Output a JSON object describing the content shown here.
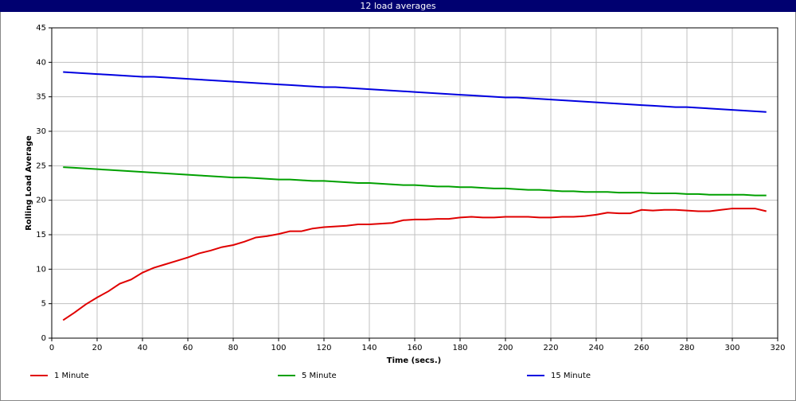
{
  "chart_data": {
    "type": "line",
    "title": "12 load averages",
    "x_label": "Time (secs.)",
    "y_label": "Rolling Load Average",
    "x": [
      5,
      10,
      15,
      20,
      25,
      30,
      35,
      40,
      45,
      50,
      55,
      60,
      65,
      70,
      75,
      80,
      85,
      90,
      95,
      100,
      105,
      110,
      115,
      120,
      125,
      130,
      135,
      140,
      145,
      150,
      155,
      160,
      165,
      170,
      175,
      180,
      185,
      190,
      195,
      200,
      205,
      210,
      215,
      220,
      225,
      230,
      235,
      240,
      245,
      250,
      255,
      260,
      265,
      270,
      275,
      280,
      285,
      290,
      295,
      300,
      305,
      310,
      315
    ],
    "series": [
      {
        "name": "1 Minute",
        "color": "#e00000",
        "values": [
          2.6,
          3.7,
          4.9,
          5.9,
          6.8,
          7.9,
          8.5,
          9.5,
          10.2,
          10.7,
          11.2,
          11.7,
          12.3,
          12.7,
          13.2,
          13.5,
          14.0,
          14.6,
          14.8,
          15.1,
          15.5,
          15.5,
          15.9,
          16.1,
          16.2,
          16.3,
          16.5,
          16.5,
          16.6,
          16.7,
          17.1,
          17.2,
          17.2,
          17.3,
          17.3,
          17.5,
          17.6,
          17.5,
          17.5,
          17.6,
          17.6,
          17.6,
          17.5,
          17.5,
          17.6,
          17.6,
          17.7,
          17.9,
          18.2,
          18.1,
          18.1,
          18.6,
          18.5,
          18.6,
          18.6,
          18.5,
          18.4,
          18.4,
          18.6,
          18.8,
          18.8,
          18.8,
          18.4
        ]
      },
      {
        "name": "5 Minute",
        "color": "#00a000",
        "values": [
          24.8,
          24.7,
          24.6,
          24.5,
          24.4,
          24.3,
          24.2,
          24.1,
          24.0,
          23.9,
          23.8,
          23.7,
          23.6,
          23.5,
          23.4,
          23.3,
          23.3,
          23.2,
          23.1,
          23.0,
          23.0,
          22.9,
          22.8,
          22.8,
          22.7,
          22.6,
          22.5,
          22.5,
          22.4,
          22.3,
          22.2,
          22.2,
          22.1,
          22.0,
          22.0,
          21.9,
          21.9,
          21.8,
          21.7,
          21.7,
          21.6,
          21.5,
          21.5,
          21.4,
          21.3,
          21.3,
          21.2,
          21.2,
          21.2,
          21.1,
          21.1,
          21.1,
          21.0,
          21.0,
          21.0,
          20.9,
          20.9,
          20.8,
          20.8,
          20.8,
          20.8,
          20.7,
          20.7
        ]
      },
      {
        "name": "15 Minute",
        "color": "#0000e0",
        "values": [
          38.6,
          38.5,
          38.4,
          38.3,
          38.2,
          38.1,
          38.0,
          37.9,
          37.9,
          37.8,
          37.7,
          37.6,
          37.5,
          37.4,
          37.3,
          37.2,
          37.1,
          37.0,
          36.9,
          36.8,
          36.7,
          36.6,
          36.5,
          36.4,
          36.4,
          36.3,
          36.2,
          36.1,
          36.0,
          35.9,
          35.8,
          35.7,
          35.6,
          35.5,
          35.4,
          35.3,
          35.2,
          35.1,
          35.0,
          34.9,
          34.9,
          34.8,
          34.7,
          34.6,
          34.5,
          34.4,
          34.3,
          34.2,
          34.1,
          34.0,
          33.9,
          33.8,
          33.7,
          33.6,
          33.5,
          33.5,
          33.4,
          33.3,
          33.2,
          33.1,
          33.0,
          32.9,
          32.8
        ]
      }
    ],
    "xlim": [
      0,
      320
    ],
    "xticks": [
      0,
      20,
      40,
      60,
      80,
      100,
      120,
      140,
      160,
      180,
      200,
      220,
      240,
      260,
      280,
      300,
      320
    ],
    "ylim": [
      0,
      45
    ],
    "yticks": [
      0,
      5,
      10,
      15,
      20,
      25,
      30,
      35,
      40,
      45
    ],
    "grid": true,
    "legend": "bottom"
  }
}
